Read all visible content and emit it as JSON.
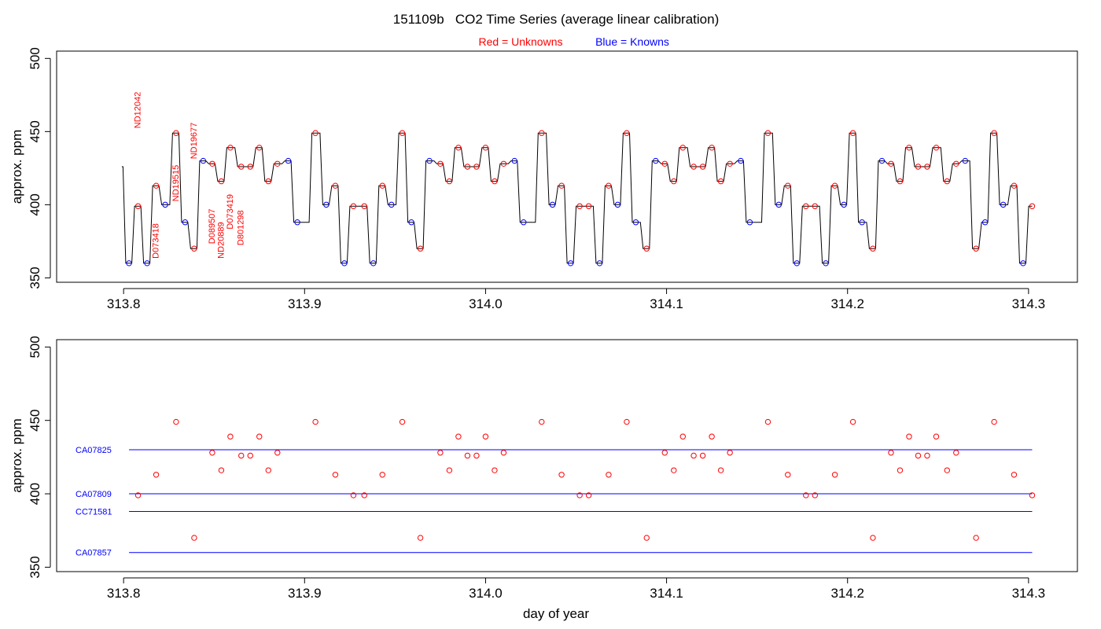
{
  "title": "151109b   CO2 Time Series (average linear calibration)",
  "legend": {
    "unknowns_label": "Red = Unknowns",
    "knowns_label": "Blue = Knowns"
  },
  "colors": {
    "unknown": "#ff0000",
    "known": "#0000ff",
    "trace": "#000000"
  },
  "chart_data": [
    {
      "type": "line",
      "panel": "top",
      "ylabel": "approx. ppm",
      "xlabel": "",
      "xlim": [
        313.763,
        314.327
      ],
      "ylim": [
        347,
        505
      ],
      "x_ticks": [
        "313.8",
        "313.9",
        "314.0",
        "314.1",
        "314.2",
        "314.3"
      ],
      "x_tick_values": [
        313.8,
        313.9,
        314.0,
        314.1,
        314.2,
        314.3
      ],
      "y_ticks": [
        "350",
        "400",
        "450",
        "500"
      ],
      "y_tick_values": [
        350,
        400,
        450,
        500
      ],
      "grid": false,
      "trace_start": {
        "x": 313.799,
        "y": 426
      },
      "series": [
        {
          "name": "Unknowns",
          "points": [
            [
              313.808,
              399
            ],
            [
              313.818,
              413
            ],
            [
              313.829,
              449
            ],
            [
              313.839,
              370
            ],
            [
              313.849,
              428
            ],
            [
              313.854,
              416
            ],
            [
              313.859,
              439
            ],
            [
              313.865,
              426
            ],
            [
              313.87,
              426
            ],
            [
              313.875,
              439
            ],
            [
              313.88,
              416
            ],
            [
              313.885,
              428
            ],
            [
              313.906,
              449
            ],
            [
              313.917,
              413
            ],
            [
              313.927,
              399
            ],
            [
              313.933,
              399
            ],
            [
              313.943,
              413
            ],
            [
              313.954,
              449
            ],
            [
              313.964,
              370
            ],
            [
              313.975,
              428
            ],
            [
              313.98,
              416
            ],
            [
              313.985,
              439
            ],
            [
              313.99,
              426
            ],
            [
              313.995,
              426
            ],
            [
              314.0,
              439
            ],
            [
              314.005,
              416
            ],
            [
              314.01,
              428
            ],
            [
              314.031,
              449
            ],
            [
              314.042,
              413
            ],
            [
              314.052,
              399
            ],
            [
              314.057,
              399
            ],
            [
              314.068,
              413
            ],
            [
              314.078,
              449
            ],
            [
              314.089,
              370
            ],
            [
              314.099,
              428
            ],
            [
              314.104,
              416
            ],
            [
              314.109,
              439
            ],
            [
              314.115,
              426
            ],
            [
              314.12,
              426
            ],
            [
              314.125,
              439
            ],
            [
              314.13,
              416
            ],
            [
              314.135,
              428
            ],
            [
              314.156,
              449
            ],
            [
              314.167,
              413
            ],
            [
              314.177,
              399
            ],
            [
              314.182,
              399
            ],
            [
              314.193,
              413
            ],
            [
              314.203,
              449
            ],
            [
              314.214,
              370
            ],
            [
              314.224,
              428
            ],
            [
              314.229,
              416
            ],
            [
              314.234,
              439
            ],
            [
              314.239,
              426
            ],
            [
              314.244,
              426
            ],
            [
              314.249,
              439
            ],
            [
              314.255,
              416
            ],
            [
              314.26,
              428
            ],
            [
              314.271,
              370
            ],
            [
              314.281,
              449
            ],
            [
              314.292,
              413
            ],
            [
              314.302,
              399
            ]
          ]
        },
        {
          "name": "Knowns",
          "points": [
            [
              313.803,
              360
            ],
            [
              313.813,
              360
            ],
            [
              313.823,
              400
            ],
            [
              313.834,
              388
            ],
            [
              313.844,
              430
            ],
            [
              313.891,
              430
            ],
            [
              313.896,
              388
            ],
            [
              313.912,
              400
            ],
            [
              313.922,
              360
            ],
            [
              313.938,
              360
            ],
            [
              313.948,
              400
            ],
            [
              313.959,
              388
            ],
            [
              313.969,
              430
            ],
            [
              314.016,
              430
            ],
            [
              314.021,
              388
            ],
            [
              314.037,
              400
            ],
            [
              314.047,
              360
            ],
            [
              314.063,
              360
            ],
            [
              314.073,
              400
            ],
            [
              314.083,
              388
            ],
            [
              314.094,
              430
            ],
            [
              314.141,
              430
            ],
            [
              314.146,
              388
            ],
            [
              314.162,
              400
            ],
            [
              314.172,
              360
            ],
            [
              314.188,
              360
            ],
            [
              314.198,
              400
            ],
            [
              314.208,
              388
            ],
            [
              314.219,
              430
            ],
            [
              314.265,
              430
            ],
            [
              314.276,
              388
            ],
            [
              314.286,
              400
            ],
            [
              314.297,
              360
            ]
          ]
        }
      ],
      "annotations": [
        {
          "text": "ND12042",
          "x": 313.808,
          "y": 449
        },
        {
          "text": "D073418",
          "x": 313.818,
          "y": 360
        },
        {
          "text": "ND19515",
          "x": 313.829,
          "y": 399
        },
        {
          "text": "ND19677",
          "x": 313.839,
          "y": 428
        },
        {
          "text": "D089507",
          "x": 313.849,
          "y": 370
        },
        {
          "text": "ND20889",
          "x": 313.854,
          "y": 360
        },
        {
          "text": "D073419",
          "x": 313.859,
          "y": 380
        },
        {
          "text": "D801298",
          "x": 313.865,
          "y": 369
        }
      ]
    },
    {
      "type": "scatter",
      "panel": "bottom",
      "ylabel": "approx. ppm",
      "xlabel": "day of year",
      "xlim": [
        313.763,
        314.327
      ],
      "ylim": [
        347,
        505
      ],
      "x_ticks": [
        "313.8",
        "313.9",
        "314.0",
        "314.1",
        "314.2",
        "314.3"
      ],
      "x_tick_values": [
        313.8,
        313.9,
        314.0,
        314.1,
        314.2,
        314.3
      ],
      "y_ticks": [
        "350",
        "400",
        "450",
        "500"
      ],
      "y_tick_values": [
        350,
        400,
        450,
        500
      ],
      "grid": false,
      "reference_lines": [
        {
          "label": "CA07825",
          "y": 430
        },
        {
          "label": "CA07809",
          "y": 400
        },
        {
          "label": "CC71581",
          "y": 388
        },
        {
          "label": "CA07857",
          "y": 360
        }
      ],
      "reference_x_range": [
        313.803,
        314.302
      ]
    }
  ]
}
